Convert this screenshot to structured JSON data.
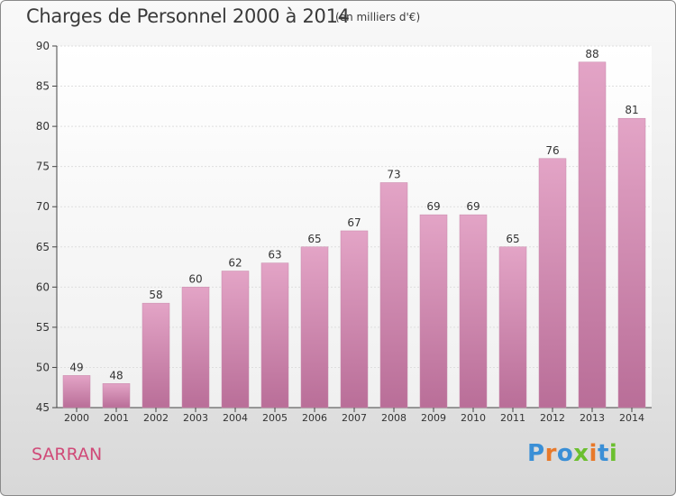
{
  "title": "Charges de Personnel 2000 à 2014",
  "subtitle": "(en milliers d'€)",
  "commune": "SARRAN",
  "logo": {
    "text": "Proxiti",
    "letters": [
      {
        "ch": "P",
        "color": "#3a8fd6"
      },
      {
        "ch": "r",
        "color": "#e8792a"
      },
      {
        "ch": "o",
        "color": "#3a8fd6"
      },
      {
        "ch": "x",
        "color": "#6bbf2f"
      },
      {
        "ch": "i",
        "color": "#e8792a"
      },
      {
        "ch": "t",
        "color": "#3a8fd6"
      },
      {
        "ch": "i",
        "color": "#6bbf2f"
      }
    ]
  },
  "chart_data": {
    "type": "bar",
    "title": "Charges de Personnel 2000 à 2014",
    "subtitle": "(en milliers d'€)",
    "categories": [
      "2000",
      "2001",
      "2002",
      "2003",
      "2004",
      "2005",
      "2006",
      "2007",
      "2008",
      "2009",
      "2010",
      "2011",
      "2012",
      "2013",
      "2014"
    ],
    "values": [
      49,
      48,
      58,
      60,
      62,
      63,
      65,
      67,
      73,
      69,
      69,
      65,
      76,
      88,
      81
    ],
    "ylim": [
      45,
      90
    ],
    "yticks": [
      45,
      50,
      55,
      60,
      65,
      70,
      75,
      80,
      85,
      90
    ],
    "grid": true,
    "bar_color": "#d98fb6",
    "xlabel": "",
    "ylabel": ""
  }
}
